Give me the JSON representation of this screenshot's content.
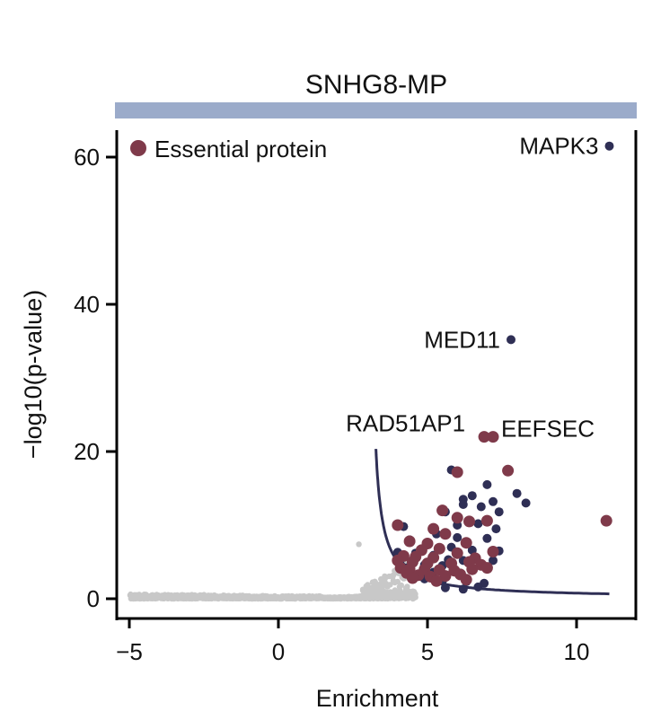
{
  "chart_data": {
    "type": "scatter",
    "title": "SNHG8-MP",
    "xlabel": "Enrichment",
    "ylabel": "−log10(p-value)",
    "xlim": [
      -5.5,
      12
    ],
    "ylim": [
      -2.5,
      65
    ],
    "xticks": [
      -5,
      0,
      5,
      10
    ],
    "xtick_labels": [
      "−5",
      "0",
      "5",
      "10"
    ],
    "yticks": [
      0,
      20,
      40,
      60
    ],
    "ytick_labels": [
      "0",
      "20",
      "40",
      "60"
    ],
    "legend": {
      "label": "Essential protein",
      "placement": "top-left"
    },
    "colors": {
      "background_points": "#c8c8c8",
      "significant": "#2f2f55",
      "essential": "#7f3a4a",
      "threshold_curve": "#2f2f55",
      "title_bar": "#9babca"
    },
    "labeled_points": [
      {
        "name": "MAPK3",
        "x": 11.1,
        "y": 61.5,
        "group": "significant"
      },
      {
        "name": "MED11",
        "x": 7.8,
        "y": 35.2,
        "group": "significant"
      },
      {
        "name": "RAD51AP1",
        "x": 6.9,
        "y": 22.0,
        "group": "essential"
      },
      {
        "name": "EEFSEC",
        "x": 7.2,
        "y": 22.0,
        "group": "essential"
      }
    ],
    "essential_points": [
      [
        6.0,
        17.2
      ],
      [
        7.7,
        17.4
      ],
      [
        11.0,
        10.6
      ],
      [
        5.5,
        12.0
      ],
      [
        6.0,
        11.0
      ],
      [
        6.4,
        10.5
      ],
      [
        7.0,
        10.6
      ],
      [
        4.0,
        10.0
      ],
      [
        5.2,
        9.5
      ],
      [
        5.6,
        8.8
      ],
      [
        4.4,
        7.8
      ],
      [
        5.0,
        7.5
      ],
      [
        6.3,
        7.6
      ],
      [
        5.4,
        6.8
      ],
      [
        4.8,
        6.6
      ],
      [
        6.0,
        6.2
      ],
      [
        7.2,
        6.4
      ],
      [
        4.2,
        5.8
      ],
      [
        4.6,
        5.7
      ],
      [
        5.2,
        5.6
      ],
      [
        6.6,
        5.5
      ],
      [
        4.0,
        5.2
      ],
      [
        4.5,
        5.0
      ],
      [
        5.0,
        4.8
      ],
      [
        5.8,
        4.8
      ],
      [
        6.4,
        5.0
      ],
      [
        6.8,
        4.6
      ],
      [
        7.0,
        4.2
      ],
      [
        4.1,
        4.2
      ],
      [
        4.4,
        4.0
      ],
      [
        4.9,
        4.0
      ],
      [
        5.4,
        3.9
      ],
      [
        5.9,
        3.8
      ],
      [
        6.5,
        4.0
      ],
      [
        4.3,
        3.5
      ],
      [
        4.7,
        3.2
      ],
      [
        5.1,
        3.0
      ],
      [
        5.6,
        3.1
      ],
      [
        6.1,
        3.3
      ],
      [
        4.5,
        2.8
      ],
      [
        6.3,
        2.6
      ],
      [
        5.3,
        2.4
      ]
    ],
    "significant_points": [
      [
        5.8,
        17.5
      ],
      [
        6.2,
        13.5
      ],
      [
        6.5,
        14.0
      ],
      [
        7.0,
        15.5
      ],
      [
        7.2,
        13.2
      ],
      [
        8.0,
        14.3
      ],
      [
        8.3,
        13.0
      ],
      [
        6.2,
        12.8
      ],
      [
        6.8,
        12.5
      ],
      [
        7.4,
        11.8
      ],
      [
        5.6,
        11.8
      ],
      [
        6.0,
        10.0
      ],
      [
        6.7,
        10.2
      ],
      [
        7.3,
        9.5
      ],
      [
        4.2,
        9.8
      ],
      [
        5.3,
        8.8
      ],
      [
        6.0,
        8.3
      ],
      [
        7.0,
        8.2
      ],
      [
        4.4,
        8.0
      ],
      [
        5.8,
        7.0
      ],
      [
        6.5,
        6.6
      ],
      [
        4.0,
        6.3
      ],
      [
        7.4,
        6.5
      ],
      [
        4.6,
        6.2
      ],
      [
        5.2,
        5.9
      ],
      [
        5.7,
        5.3
      ],
      [
        6.2,
        5.2
      ],
      [
        7.2,
        5.2
      ],
      [
        4.1,
        4.6
      ],
      [
        4.9,
        4.6
      ],
      [
        5.5,
        4.5
      ],
      [
        6.5,
        4.0
      ],
      [
        4.3,
        4.2
      ],
      [
        6.9,
        2.1
      ],
      [
        6.3,
        2.3
      ],
      [
        5.5,
        2.4
      ],
      [
        4.9,
        2.7
      ],
      [
        5.6,
        1.5
      ],
      [
        6.7,
        1.6
      ],
      [
        6.2,
        1.3
      ],
      [
        5.2,
        3.6
      ]
    ],
    "threshold_curve": {
      "description": "y = 0.06 + 4.87/(x - 3.03)",
      "x_start": 3.27,
      "x_end": 11.1
    }
  }
}
